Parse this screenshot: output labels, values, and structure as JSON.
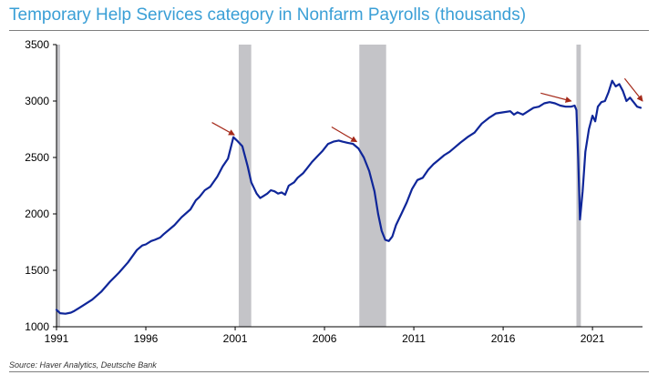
{
  "chart_data": {
    "type": "line",
    "title": "Temporary Help Services category in Nonfarm Payrolls (thousands)",
    "source": "Source: Haver Analytics, Deutsche Bank",
    "xlim": [
      1991.0,
      2023.8
    ],
    "ylim": [
      1000,
      3500
    ],
    "x_ticks": [
      1991,
      1996,
      2001,
      2006,
      2011,
      2016,
      2021
    ],
    "y_ticks": [
      1000,
      1500,
      2000,
      2500,
      3000,
      3500
    ],
    "grid": false,
    "legend": "none",
    "colors": {
      "line": "#0f2699",
      "recession": "#c4c4c8",
      "arrow": "#a52a1a",
      "title": "#3a9fd6"
    },
    "recessions": [
      [
        1991.0,
        1991.2
      ],
      [
        2001.2,
        2001.9
      ],
      [
        2007.95,
        2009.45
      ],
      [
        2020.1,
        2020.35
      ]
    ],
    "series": [
      {
        "x": [
          1991.0,
          1991.2,
          1991.5,
          1991.8,
          1992.0,
          1992.3,
          1992.6,
          1993.0,
          1993.5,
          1994.0,
          1994.5,
          1995.0,
          1995.5,
          1995.8,
          1996.0,
          1996.3,
          1996.5,
          1996.8,
          1997.0,
          1997.3,
          1997.6,
          1998.0,
          1998.5,
          1998.8,
          1999.0,
          1999.3,
          1999.6,
          2000.0,
          2000.3,
          2000.6,
          2000.9,
          2001.1,
          2001.4,
          2001.7,
          2001.9,
          2002.2,
          2002.4,
          2002.6,
          2002.8,
          2003.0,
          2003.2,
          2003.4,
          2003.6,
          2003.8,
          2004.0,
          2004.3,
          2004.5,
          2004.8,
          2005.0,
          2005.3,
          2005.6,
          2005.9,
          2006.2,
          2006.5,
          2006.8,
          2007.0,
          2007.3,
          2007.6,
          2007.9,
          2008.2,
          2008.5,
          2008.8,
          2009.0,
          2009.2,
          2009.4,
          2009.6,
          2009.8,
          2010.0,
          2010.3,
          2010.6,
          2010.9,
          2011.2,
          2011.5,
          2011.8,
          2012.1,
          2012.4,
          2012.7,
          2013.0,
          2013.3,
          2013.6,
          2014.0,
          2014.4,
          2014.8,
          2015.2,
          2015.6,
          2016.0,
          2016.4,
          2016.6,
          2016.8,
          2017.1,
          2017.4,
          2017.7,
          2018.0,
          2018.3,
          2018.6,
          2018.9,
          2019.2,
          2019.5,
          2019.8,
          2020.0,
          2020.1,
          2020.2,
          2020.3,
          2020.45,
          2020.6,
          2020.8,
          2021.0,
          2021.15,
          2021.3,
          2021.5,
          2021.7,
          2021.9,
          2022.1,
          2022.3,
          2022.5,
          2022.7,
          2022.9,
          2023.1,
          2023.3,
          2023.5,
          2023.7
        ],
        "y": [
          1150,
          1120,
          1115,
          1125,
          1140,
          1170,
          1200,
          1240,
          1310,
          1400,
          1480,
          1570,
          1680,
          1720,
          1730,
          1760,
          1770,
          1790,
          1820,
          1860,
          1900,
          1970,
          2040,
          2120,
          2150,
          2210,
          2240,
          2330,
          2420,
          2490,
          2680,
          2650,
          2600,
          2420,
          2280,
          2180,
          2140,
          2160,
          2180,
          2210,
          2200,
          2180,
          2190,
          2170,
          2250,
          2280,
          2320,
          2360,
          2400,
          2460,
          2510,
          2560,
          2620,
          2640,
          2650,
          2640,
          2630,
          2620,
          2580,
          2500,
          2380,
          2200,
          2000,
          1850,
          1770,
          1760,
          1800,
          1900,
          2000,
          2100,
          2220,
          2300,
          2320,
          2390,
          2440,
          2480,
          2520,
          2550,
          2590,
          2630,
          2680,
          2720,
          2800,
          2850,
          2890,
          2900,
          2910,
          2880,
          2900,
          2880,
          2910,
          2940,
          2950,
          2980,
          2990,
          2980,
          2960,
          2950,
          2950,
          2960,
          2920,
          2500,
          1950,
          2200,
          2550,
          2750,
          2870,
          2820,
          2950,
          2990,
          3000,
          3080,
          3180,
          3130,
          3150,
          3090,
          3000,
          3030,
          2990,
          2950,
          2940
        ]
      }
    ],
    "arrows": [
      {
        "from": [
          1999.7,
          2810
        ],
        "to": [
          2000.95,
          2700
        ]
      },
      {
        "from": [
          2006.4,
          2770
        ],
        "to": [
          2007.8,
          2640
        ]
      },
      {
        "from": [
          2018.1,
          3070
        ],
        "to": [
          2019.8,
          3000
        ]
      },
      {
        "from": [
          2022.8,
          3200
        ],
        "to": [
          2023.8,
          3000
        ]
      }
    ]
  }
}
